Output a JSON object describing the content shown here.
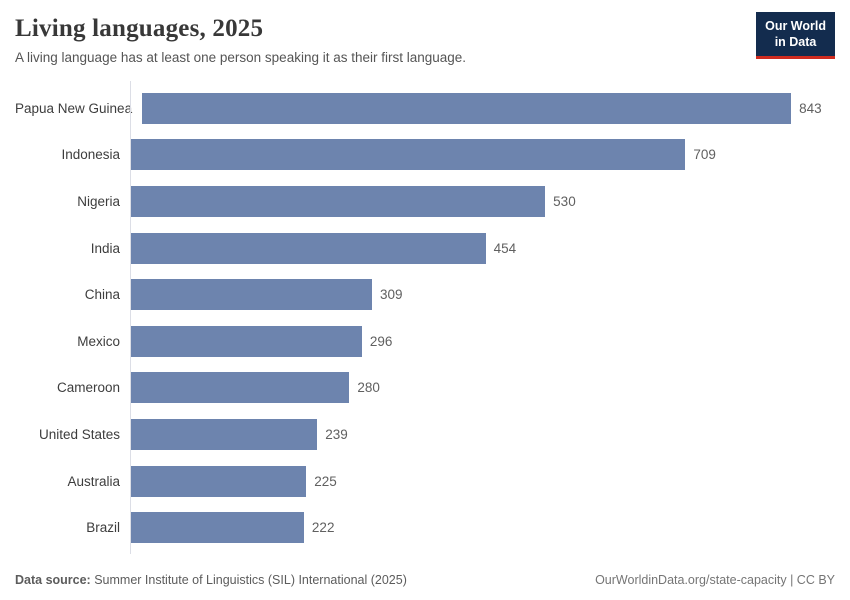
{
  "header": {
    "title": "Living languages, 2025",
    "subtitle": "A living language has at least one person speaking it as their first language.",
    "logo": {
      "line1": "Our World",
      "line2": "in Data"
    }
  },
  "chart_data": {
    "type": "bar",
    "orientation": "horizontal",
    "title": "Living languages, 2025",
    "categories": [
      "Papua New Guinea",
      "Indonesia",
      "Nigeria",
      "India",
      "China",
      "Mexico",
      "Cameroon",
      "United States",
      "Australia",
      "Brazil"
    ],
    "values": [
      843,
      709,
      530,
      454,
      309,
      296,
      280,
      239,
      225,
      222
    ],
    "xlabel": "",
    "ylabel": "",
    "xlim": [
      0,
      900
    ],
    "grid": false,
    "legend": false,
    "value_labels_shown": true
  },
  "colors": {
    "bar": "#6d84ae",
    "axis": "#dcdee6",
    "logo_bg": "#132c4e",
    "logo_accent": "#cf2b1f"
  },
  "footer": {
    "source_label": "Data source:",
    "source_text": " Summer Institute of Linguistics (SIL) International (2025)",
    "citation": "OurWorldinData.org/state-capacity | CC BY"
  }
}
